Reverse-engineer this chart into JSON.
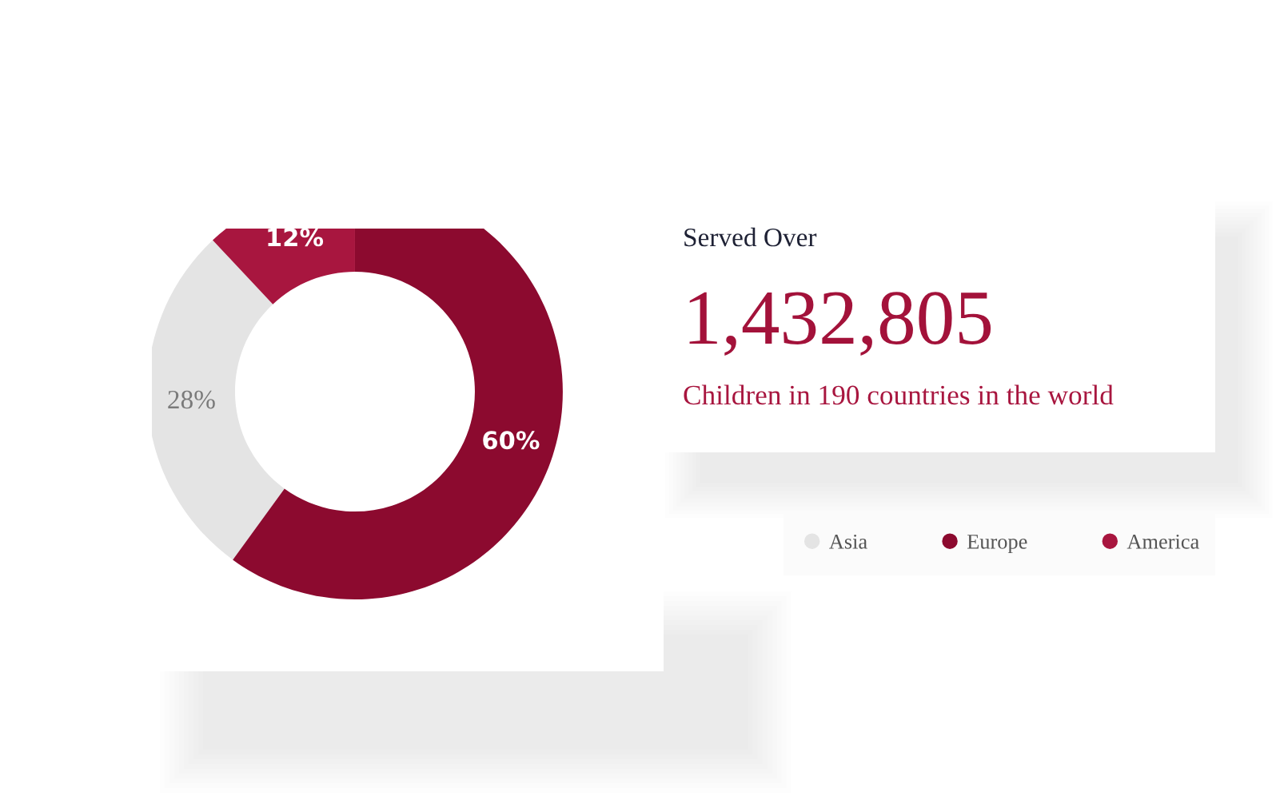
{
  "chart_data": [
    {
      "type": "donut",
      "categories": [
        "Asia",
        "Europe",
        "America"
      ],
      "values": [
        28,
        60,
        12
      ],
      "colors": [
        "#e4e4e4",
        "#8c0a2f",
        "#a8163f"
      ],
      "value_labels": [
        "28%",
        "60%",
        "12%"
      ],
      "legend": "right"
    },
    {
      "type": "other",
      "title": "Served Over",
      "annotations": [
        "1,432,805",
        "Children in 190 countries in the world"
      ]
    }
  ]
}
